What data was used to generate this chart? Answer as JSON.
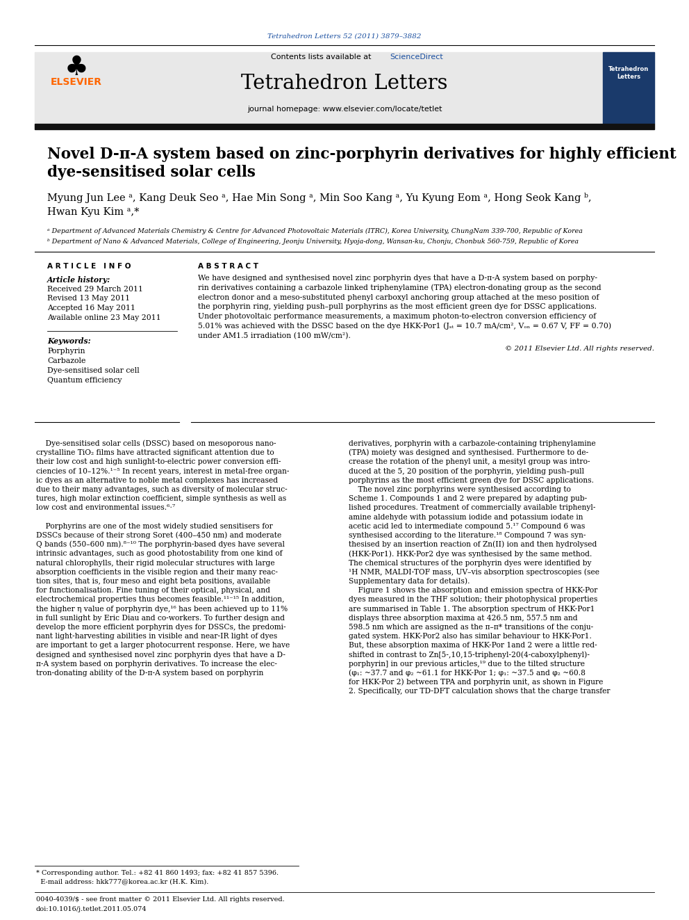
{
  "journal_ref": "Tetrahedron Letters 52 (2011) 3879–3882",
  "contents_line": "Contents lists available at ",
  "sciencedirect_text": "ScienceDirect",
  "journal_name": "Tetrahedron Letters",
  "journal_homepage": "journal homepage: www.elsevier.com/locate/tetlet",
  "elsevier_color": "#FF6600",
  "header_bg": "#e8e8e8",
  "article_title_line1": "Novel D-π-A system based on zinc-porphyrin derivatives for highly efficient",
  "article_title_line2": "dye-sensitised solar cells",
  "authors_line1": "Myung Jun Lee ᵃ, Kang Deuk Seo ᵃ, Hae Min Song ᵃ, Min Soo Kang ᵃ, Yu Kyung Eom ᵃ, Hong Seok Kang ᵇ,",
  "authors_line2": "Hwan Kyu Kim ᵃ,*",
  "affil_a": "ᵃ Department of Advanced Materials Chemistry & Centre for Advanced Photovoltaic Materials (ITRC), Korea University, ChungNam 339-700, Republic of Korea",
  "affil_b": "ᵇ Department of Nano & Advanced Materials, College of Engineering, Jeonju University, Hyoja-dong, Wansan-ku, Chonju, Chonbuk 560-759, Republic of Korea",
  "article_info_header": "A R T I C L E   I N F O",
  "abstract_header": "A B S T R A C T",
  "article_history_label": "Article history:",
  "received": "Received 29 March 2011",
  "revised": "Revised 13 May 2011",
  "accepted": "Accepted 16 May 2011",
  "available": "Available online 23 May 2011",
  "keywords_label": "Keywords:",
  "keywords": [
    "Porphyrin",
    "Carbazole",
    "Dye-sensitised solar cell",
    "Quantum efficiency"
  ],
  "abstract_lines": [
    "We have designed and synthesised novel zinc porphyrin dyes that have a D-π-A system based on porphy-",
    "rin derivatives containing a carbazole linked triphenylamine (TPA) electron-donating group as the second",
    "electron donor and a meso-substituted phenyl carboxyl anchoring group attached at the meso position of",
    "the porphyrin ring, yielding push–pull porphyrins as the most efficient green dye for DSSC applications.",
    "Under photovoltaic performance measurements, a maximum photon-to-electron conversion efficiency of",
    "5.01% was achieved with the DSSC based on the dye HKK-Por1 (Jₛₜ = 10.7 mA/cm², Vₒₙ = 0.67 V, FF = 0.70)",
    "under AM1.5 irradiation (100 mW/cm²)."
  ],
  "copyright": "© 2011 Elsevier Ltd. All rights reserved.",
  "body_col1_lines": [
    "    Dye-sensitised solar cells (DSSC) based on mesoporous nano-",
    "crystalline TiO₂ films have attracted significant attention due to",
    "their low cost and high sunlight-to-electric power conversion effi-",
    "ciencies of 10–12%.¹⁻⁵ In recent years, interest in metal-free organ-",
    "ic dyes as an alternative to noble metal complexes has increased",
    "due to their many advantages, such as diversity of molecular struc-",
    "tures, high molar extinction coefficient, simple synthesis as well as",
    "low cost and environmental issues.⁶⋅⁷",
    "",
    "    Porphyrins are one of the most widely studied sensitisers for",
    "DSSCs because of their strong Soret (400–450 nm) and moderate",
    "Q bands (550–600 nm).⁸⁻¹⁰ The porphyrin-based dyes have several",
    "intrinsic advantages, such as good photostability from one kind of",
    "natural chlorophylls, their rigid molecular structures with large",
    "absorption coefficients in the visible region and their many reac-",
    "tion sites, that is, four meso and eight beta positions, available",
    "for functionalisation. Fine tuning of their optical, physical, and",
    "electrochemical properties thus becomes feasible.¹¹⁻¹⁵ In addition,",
    "the higher η value of porphyrin dye,¹⁶ has been achieved up to 11%",
    "in full sunlight by Eric Diau and co-workers. To further design and",
    "develop the more efficient porphyrin dyes for DSSCs, the predomi-",
    "nant light-harvesting abilities in visible and near-IR light of dyes",
    "are important to get a larger photocurrent response. Here, we have",
    "designed and synthesised novel zinc porphyrin dyes that have a D-",
    "π-A system based on porphyrin derivatives. To increase the elec-",
    "tron-donating ability of the D-π-A system based on porphyrin"
  ],
  "body_col2_lines": [
    "derivatives, porphyrin with a carbazole-containing triphenylamine",
    "(TPA) moiety was designed and synthesised. Furthermore to de-",
    "crease the rotation of the phenyl unit, a mesityl group was intro-",
    "duced at the 5, 20 position of the porphyrin, yielding push–pull",
    "porphyrins as the most efficient green dye for DSSC applications.",
    "    The novel zinc porphyrins were synthesised according to",
    "Scheme 1. Compounds 1 and 2 were prepared by adapting pub-",
    "lished procedures. Treatment of commercially available triphenyl-",
    "amine aldehyde with potassium iodide and potassium iodate in",
    "acetic acid led to intermediate compound 5.¹⁷ Compound 6 was",
    "synthesised according to the literature.¹⁸ Compound 7 was syn-",
    "thesised by an insertion reaction of Zn(II) ion and then hydrolysed",
    "(HKK-Por1). HKK-Por2 dye was synthesised by the same method.",
    "The chemical structures of the porphyrin dyes were identified by",
    "¹H NMR, MALDI-TOF mass, UV–vis absorption spectroscopies (see",
    "Supplementary data for details).",
    "    Figure 1 shows the absorption and emission spectra of HKK-Por",
    "dyes measured in the THF solution; their photophysical properties",
    "are summarised in Table 1. The absorption spectrum of HKK-Por1",
    "displays three absorption maxima at 426.5 nm, 557.5 nm and",
    "598.5 nm which are assigned as the π–π* transitions of the conju-",
    "gated system. HKK-Por2 also has similar behaviour to HKK-Por1.",
    "But, these absorption maxima of HKK-Por 1and 2 were a little red-",
    "shifted in contrast to Zn[5-,10,15-triphenyl-20(4-caboxylphenyl)-",
    "porphyrin] in our previous articles,¹⁹ due to the tilted structure",
    "(φ₁: ~37.7 and φ₂ ~61.1 for HKK-Por 1; φ₁: ~37.5 and φ₂ ~60.8",
    "for HKK-Por 2) between TPA and porphyrin unit, as shown in Figure",
    "2. Specifically, our TD-DFT calculation shows that the charge transfer"
  ],
  "footer_line1": "* Corresponding author. Tel.: +82 41 860 1493; fax: +82 41 857 5396.",
  "footer_line2": "  E-mail address: hkk777@korea.ac.kr (H.K. Kim).",
  "footer_line3": "0040-4039/$ - see front matter © 2011 Elsevier Ltd. All rights reserved.",
  "footer_line4": "doi:10.1016/j.tetlet.2011.05.074",
  "bg_color": "#ffffff",
  "text_color": "#000000",
  "blue_color": "#1a4fa0",
  "cover_bg": "#1a3a6b"
}
